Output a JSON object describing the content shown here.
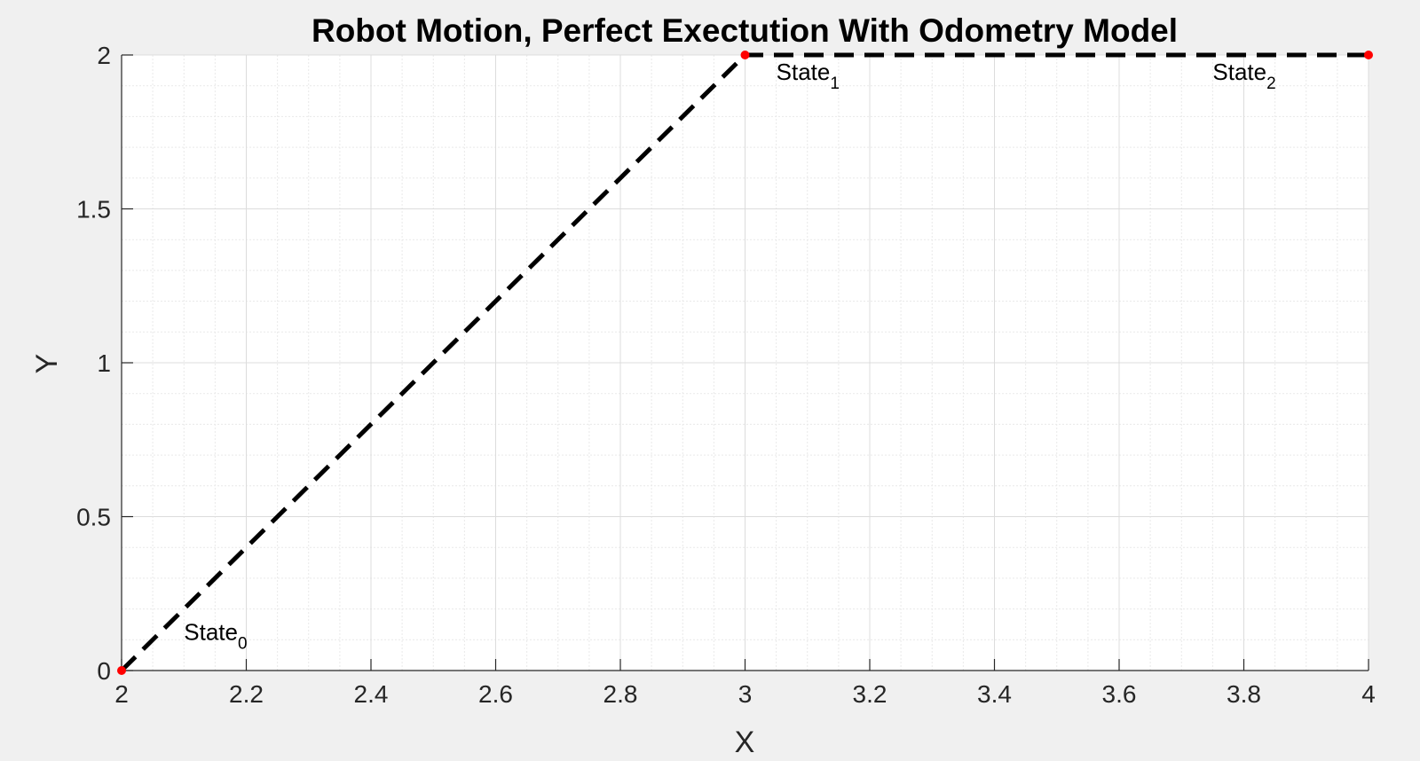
{
  "chart_data": {
    "type": "line",
    "title": "Robot Motion, Perfect Exectution With Odometry Model",
    "xlabel": "X",
    "ylabel": "Y",
    "xlim": [
      2,
      4
    ],
    "ylim": [
      0,
      2
    ],
    "xticks": [
      2,
      2.2,
      2.4,
      2.6,
      2.8,
      3,
      3.2,
      3.4,
      3.6,
      3.8,
      4
    ],
    "xtick_labels": [
      "2",
      "2.2",
      "2.4",
      "2.6",
      "2.8",
      "3",
      "3.2",
      "3.4",
      "3.6",
      "3.8",
      "4"
    ],
    "yticks": [
      0,
      0.5,
      1,
      1.5,
      2
    ],
    "ytick_labels": [
      "0",
      "0.5",
      "1",
      "1.5",
      "2"
    ],
    "grid": true,
    "minor_grid": true,
    "series": [
      {
        "x": [
          2,
          3,
          4
        ],
        "y": [
          0,
          2,
          2
        ],
        "color": "#000000",
        "line_style": "dashed",
        "marker_color": "#ff0000"
      }
    ],
    "annotations": [
      {
        "text": "State",
        "subscript": "0",
        "x": 2.1,
        "y": 0.1
      },
      {
        "text": "State",
        "subscript": "1",
        "x": 3.05,
        "y": 1.92
      },
      {
        "text": "State",
        "subscript": "2",
        "x": 3.75,
        "y": 1.92
      }
    ]
  }
}
